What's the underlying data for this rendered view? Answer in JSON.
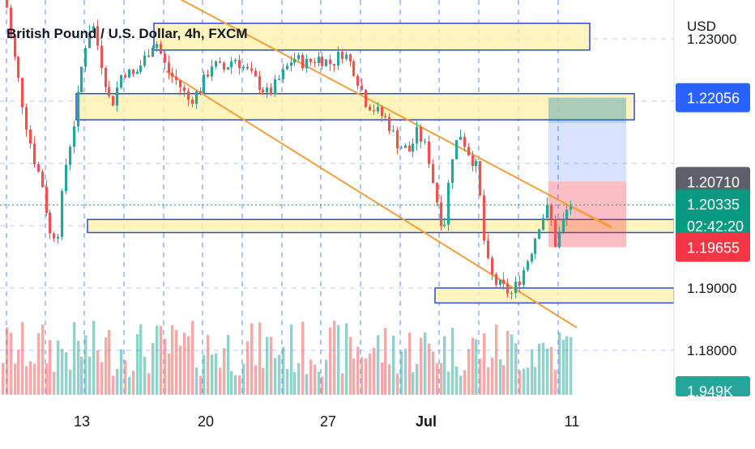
{
  "chart_data": {
    "type": "candlestick",
    "title": "British Pound / U.S. Dollar, 4h, FXCM",
    "currency": "USD",
    "y_axis": {
      "ticks": [
        {
          "value": 1.18,
          "label": "1.18000"
        },
        {
          "value": 1.19,
          "label": "1.19000"
        },
        {
          "value": 1.23,
          "label": "1.23000"
        }
      ],
      "ylim": [
        1.172,
        1.236
      ]
    },
    "x_axis": {
      "ticks": [
        {
          "label": "13",
          "bold": false
        },
        {
          "label": "20",
          "bold": false
        },
        {
          "label": "27",
          "bold": false
        },
        {
          "label": "Jul",
          "bold": true
        },
        {
          "label": "11",
          "bold": false
        }
      ]
    },
    "price_tags": [
      {
        "label": "1.22056",
        "value": 1.22056,
        "color": "#2962ff"
      },
      {
        "label": "1.20710",
        "value": 1.2071,
        "color": "#5d606b"
      },
      {
        "label": "1.20335",
        "value": 1.20335,
        "color": "#089981",
        "sub": "02:42:20"
      },
      {
        "label": "1.19655",
        "value": 1.19655,
        "color": "#f23645"
      }
    ],
    "volume_tag": {
      "label": "1.949K",
      "color": "#26a69a"
    },
    "current_price": 1.20335,
    "zones": [
      {
        "name": "supply-zone-top",
        "y_top": 1.2325,
        "y_bottom": 1.2282
      },
      {
        "name": "resistance-zone",
        "y_top": 1.2212,
        "y_bottom": 1.217
      },
      {
        "name": "support-zone-mid",
        "y_top": 1.201,
        "y_bottom": 1.1989
      },
      {
        "name": "support-zone-low",
        "y_top": 1.19,
        "y_bottom": 1.1876
      }
    ],
    "trade_setup": {
      "entry": 1.2071,
      "target": 1.22056,
      "stop": 1.19655
    },
    "colors": {
      "up": "#26a69a",
      "down": "#ef5350",
      "trendline": "#f59e3a",
      "zone_fill": "#fff2b3",
      "zone_border": "#2a4bd7",
      "grid": "#2962ff"
    }
  }
}
